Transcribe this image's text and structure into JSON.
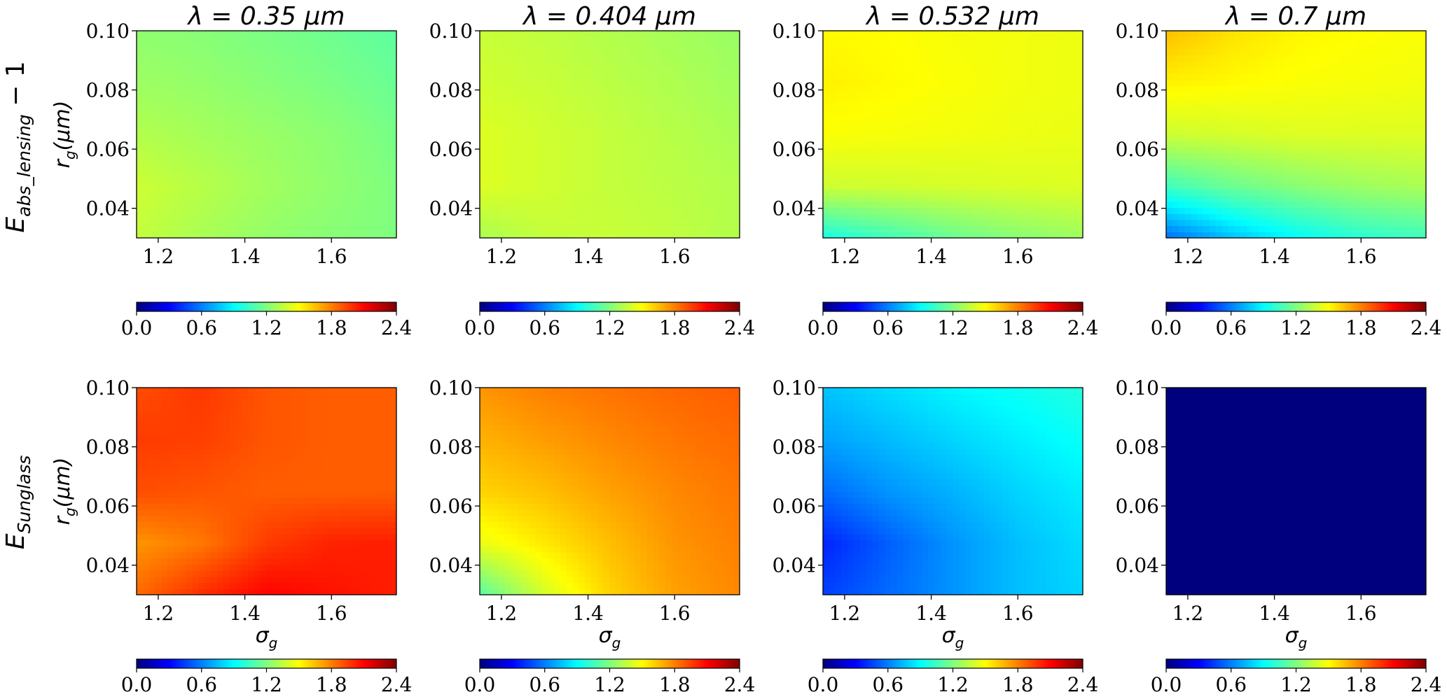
{
  "colormap": {
    "name": "jet",
    "stops": [
      "#00007f",
      "#0000ff",
      "#007fff",
      "#00ffff",
      "#7fff7f",
      "#ffff00",
      "#ff7f00",
      "#ff0000",
      "#7f0000"
    ]
  },
  "row_labels": [
    {
      "base": "E",
      "subscript": "abs_lensing",
      "suffix": " − 1"
    },
    {
      "base": "E",
      "subscript": "Sunglass",
      "suffix": ""
    }
  ],
  "chart_data": [
    {
      "type": "heatmap",
      "title": "λ = 0.35 μm",
      "xlabel": "",
      "ylabel": "r_g(μm)",
      "xlim": [
        1.15,
        1.75
      ],
      "ylim": [
        0.03,
        0.1
      ],
      "xticks": [
        "1.2",
        "1.4",
        "1.6"
      ],
      "yticks": [
        "0.04",
        "0.06",
        "0.08",
        "0.10"
      ],
      "z_grid": {
        "x": [
          1.15,
          1.3,
          1.45,
          1.6,
          1.75
        ],
        "y": [
          0.03,
          0.0475,
          0.065,
          0.0825,
          0.1
        ],
        "z": [
          [
            1.36,
            1.3,
            1.25,
            1.22,
            1.2
          ],
          [
            1.38,
            1.33,
            1.28,
            1.24,
            1.2
          ],
          [
            1.32,
            1.29,
            1.26,
            1.23,
            1.18
          ],
          [
            1.27,
            1.25,
            1.22,
            1.19,
            1.15
          ],
          [
            1.24,
            1.22,
            1.19,
            1.16,
            1.12
          ]
        ]
      },
      "colorbar": {
        "range": [
          0.0,
          2.4
        ],
        "ticks": [
          "0.0",
          "0.6",
          "1.2",
          "1.8",
          "2.4"
        ]
      }
    },
    {
      "type": "heatmap",
      "title": "λ = 0.404 μm",
      "xlabel": "",
      "ylabel": "",
      "xlim": [
        1.15,
        1.75
      ],
      "ylim": [
        0.03,
        0.1
      ],
      "xticks": [
        "1.2",
        "1.4",
        "1.6"
      ],
      "yticks": [
        "0.04",
        "0.06",
        "0.08",
        "0.10"
      ],
      "z_grid": {
        "x": [
          1.15,
          1.3,
          1.45,
          1.6,
          1.75
        ],
        "y": [
          0.03,
          0.0475,
          0.065,
          0.0825,
          0.1
        ],
        "z": [
          [
            1.3,
            1.36,
            1.37,
            1.35,
            1.32
          ],
          [
            1.42,
            1.39,
            1.36,
            1.34,
            1.32
          ],
          [
            1.42,
            1.39,
            1.36,
            1.33,
            1.3
          ],
          [
            1.39,
            1.37,
            1.34,
            1.31,
            1.28
          ],
          [
            1.37,
            1.35,
            1.32,
            1.29,
            1.26
          ]
        ]
      },
      "colorbar": {
        "range": [
          0.0,
          2.4
        ],
        "ticks": [
          "0.0",
          "0.6",
          "1.2",
          "1.8",
          "2.4"
        ]
      }
    },
    {
      "type": "heatmap",
      "title": "λ = 0.532 μm",
      "xlabel": "",
      "ylabel": "",
      "xlim": [
        1.15,
        1.75
      ],
      "ylim": [
        0.03,
        0.1
      ],
      "xticks": [
        "1.2",
        "1.4",
        "1.6"
      ],
      "yticks": [
        "0.04",
        "0.06",
        "0.08",
        "0.10"
      ],
      "z_grid": {
        "x": [
          1.15,
          1.3,
          1.45,
          1.6,
          1.75
        ],
        "y": [
          0.03,
          0.0475,
          0.065,
          0.0825,
          0.1
        ],
        "z": [
          [
            0.95,
            1.05,
            1.15,
            1.22,
            1.27
          ],
          [
            1.38,
            1.39,
            1.4,
            1.41,
            1.42
          ],
          [
            1.49,
            1.48,
            1.47,
            1.46,
            1.45
          ],
          [
            1.53,
            1.51,
            1.49,
            1.47,
            1.46
          ],
          [
            1.51,
            1.5,
            1.48,
            1.47,
            1.46
          ]
        ]
      },
      "colorbar": {
        "range": [
          0.0,
          2.4
        ],
        "ticks": [
          "0.0",
          "0.6",
          "1.2",
          "1.8",
          "2.4"
        ]
      }
    },
    {
      "type": "heatmap",
      "title": "λ = 0.7 μm",
      "xlabel": "",
      "ylabel": "",
      "xlim": [
        1.15,
        1.75
      ],
      "ylim": [
        0.03,
        0.1
      ],
      "xticks": [
        "1.2",
        "1.4",
        "1.6"
      ],
      "yticks": [
        "0.04",
        "0.06",
        "0.08",
        "0.10"
      ],
      "z_grid": {
        "x": [
          1.15,
          1.3,
          1.45,
          1.6,
          1.75
        ],
        "y": [
          0.03,
          0.0475,
          0.065,
          0.0825,
          0.1
        ],
        "z": [
          [
            0.55,
            0.75,
            0.9,
            1.0,
            1.05
          ],
          [
            1.05,
            1.15,
            1.22,
            1.27,
            1.3
          ],
          [
            1.38,
            1.4,
            1.42,
            1.42,
            1.42
          ],
          [
            1.53,
            1.51,
            1.49,
            1.48,
            1.47
          ],
          [
            1.65,
            1.57,
            1.52,
            1.5,
            1.49
          ]
        ]
      },
      "colorbar": {
        "range": [
          0.0,
          2.4
        ],
        "ticks": [
          "0.0",
          "0.6",
          "1.2",
          "1.8",
          "2.4"
        ]
      }
    },
    {
      "type": "heatmap",
      "title": "",
      "xlabel": "σ_g",
      "ylabel": "r_g(μm)",
      "xlim": [
        1.15,
        1.75
      ],
      "ylim": [
        0.03,
        0.1
      ],
      "xticks": [
        "1.2",
        "1.4",
        "1.6"
      ],
      "yticks": [
        "0.04",
        "0.06",
        "0.08",
        "0.10"
      ],
      "z_grid": {
        "x": [
          1.15,
          1.3,
          1.45,
          1.6,
          1.75
        ],
        "y": [
          0.03,
          0.0475,
          0.065,
          0.0825,
          0.1
        ],
        "z": [
          [
            1.85,
            2.0,
            2.1,
            2.06,
            2.03
          ],
          [
            1.75,
            1.82,
            1.96,
            2.02,
            2.03
          ],
          [
            1.92,
            1.9,
            1.88,
            1.88,
            1.88
          ],
          [
            1.96,
            1.95,
            1.9,
            1.88,
            1.88
          ],
          [
            1.92,
            1.97,
            1.9,
            1.88,
            1.88
          ]
        ]
      },
      "colorbar": {
        "range": [
          0.0,
          2.4
        ],
        "ticks": [
          "0.0",
          "0.6",
          "1.2",
          "1.8",
          "2.4"
        ]
      }
    },
    {
      "type": "heatmap",
      "title": "",
      "xlabel": "σ_g",
      "ylabel": "",
      "xlim": [
        1.15,
        1.75
      ],
      "ylim": [
        0.03,
        0.1
      ],
      "xticks": [
        "1.2",
        "1.4",
        "1.6"
      ],
      "yticks": [
        "0.04",
        "0.06",
        "0.08",
        "0.10"
      ],
      "z_grid": {
        "x": [
          1.15,
          1.3,
          1.45,
          1.6,
          1.75
        ],
        "y": [
          0.03,
          0.0475,
          0.065,
          0.0825,
          0.1
        ],
        "z": [
          [
            1.1,
            1.4,
            1.6,
            1.72,
            1.78
          ],
          [
            1.45,
            1.55,
            1.65,
            1.75,
            1.8
          ],
          [
            1.6,
            1.65,
            1.72,
            1.78,
            1.82
          ],
          [
            1.68,
            1.73,
            1.78,
            1.82,
            1.85
          ],
          [
            1.75,
            1.8,
            1.83,
            1.86,
            1.88
          ]
        ]
      },
      "colorbar": {
        "range": [
          0.0,
          2.4
        ],
        "ticks": [
          "0.0",
          "0.6",
          "1.2",
          "1.8",
          "2.4"
        ]
      }
    },
    {
      "type": "heatmap",
      "title": "",
      "xlabel": "σ_g",
      "ylabel": "",
      "xlim": [
        1.15,
        1.75
      ],
      "ylim": [
        0.03,
        0.1
      ],
      "xticks": [
        "1.2",
        "1.4",
        "1.6"
      ],
      "yticks": [
        "0.04",
        "0.06",
        "0.08",
        "0.10"
      ],
      "z_grid": {
        "x": [
          1.15,
          1.3,
          1.45,
          1.6,
          1.75
        ],
        "y": [
          0.03,
          0.0475,
          0.065,
          0.0825,
          0.1
        ],
        "z": [
          [
            0.45,
            0.55,
            0.65,
            0.75,
            0.8
          ],
          [
            0.38,
            0.52,
            0.65,
            0.75,
            0.82
          ],
          [
            0.55,
            0.65,
            0.72,
            0.8,
            0.86
          ],
          [
            0.68,
            0.74,
            0.8,
            0.86,
            0.92
          ],
          [
            0.76,
            0.82,
            0.88,
            0.93,
            0.98
          ]
        ]
      },
      "colorbar": {
        "range": [
          0.0,
          2.4
        ],
        "ticks": [
          "0.0",
          "0.6",
          "1.2",
          "1.8",
          "2.4"
        ]
      }
    },
    {
      "type": "heatmap",
      "title": "",
      "xlabel": "σ_g",
      "ylabel": "",
      "xlim": [
        1.15,
        1.75
      ],
      "ylim": [
        0.03,
        0.1
      ],
      "xticks": [
        "1.2",
        "1.4",
        "1.6"
      ],
      "yticks": [
        "0.04",
        "0.06",
        "0.08",
        "0.10"
      ],
      "z_grid": {
        "x": [
          1.15,
          1.3,
          1.45,
          1.6,
          1.75
        ],
        "y": [
          0.03,
          0.0475,
          0.065,
          0.0825,
          0.1
        ],
        "z": [
          [
            0,
            0,
            0,
            0,
            0
          ],
          [
            0,
            0,
            0,
            0,
            0
          ],
          [
            0,
            0,
            0,
            0,
            0
          ],
          [
            0,
            0,
            0,
            0,
            0
          ],
          [
            0,
            0,
            0,
            0,
            0
          ]
        ]
      },
      "colorbar": {
        "range": [
          0.0,
          2.4
        ],
        "ticks": [
          "0.0",
          "0.6",
          "1.2",
          "1.8",
          "2.4"
        ]
      }
    }
  ]
}
